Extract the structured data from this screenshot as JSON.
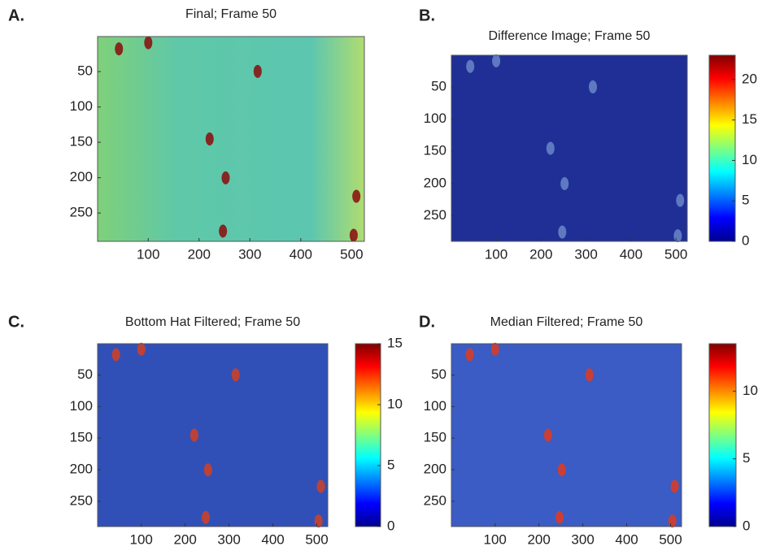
{
  "chart_data": [
    {
      "type": "image",
      "label": "A.",
      "title": "Final; Frame 50",
      "xlim": [
        0.5,
        525
      ],
      "ylim": [
        0.5,
        290
      ],
      "y_reversed": true,
      "xticks": [
        100,
        200,
        300,
        400,
        500
      ],
      "yticks": [
        50,
        100,
        150,
        200,
        250
      ]
    },
    {
      "type": "image",
      "label": "B.",
      "title": "Difference Image; Frame 50",
      "xlim": [
        0.5,
        525
      ],
      "ylim": [
        0.5,
        290
      ],
      "y_reversed": true,
      "xticks": [
        100,
        200,
        300,
        400,
        500
      ],
      "yticks": [
        50,
        100,
        150,
        200,
        250
      ],
      "colorbar": {
        "lim": [
          0,
          23
        ],
        "ticks": [
          0,
          5,
          10,
          15,
          20
        ]
      }
    },
    {
      "type": "image",
      "label": "C.",
      "title": "Bottom Hat Filtered; Frame 50",
      "xlim": [
        0.5,
        525
      ],
      "ylim": [
        0.5,
        290
      ],
      "y_reversed": true,
      "xticks": [
        100,
        200,
        300,
        400,
        500
      ],
      "yticks": [
        50,
        100,
        150,
        200,
        250
      ],
      "colorbar": {
        "lim": [
          0,
          15
        ],
        "ticks": [
          0,
          5,
          10,
          15
        ]
      }
    },
    {
      "type": "image",
      "label": "D.",
      "title": "Median Filtered; Frame 50",
      "xlim": [
        0.5,
        525
      ],
      "ylim": [
        0.5,
        290
      ],
      "y_reversed": true,
      "xticks": [
        100,
        200,
        300,
        400,
        500
      ],
      "yticks": [
        50,
        100,
        150,
        200,
        250
      ],
      "colorbar": {
        "lim": [
          0,
          13.5
        ],
        "ticks": [
          0,
          5,
          10
        ]
      }
    }
  ]
}
